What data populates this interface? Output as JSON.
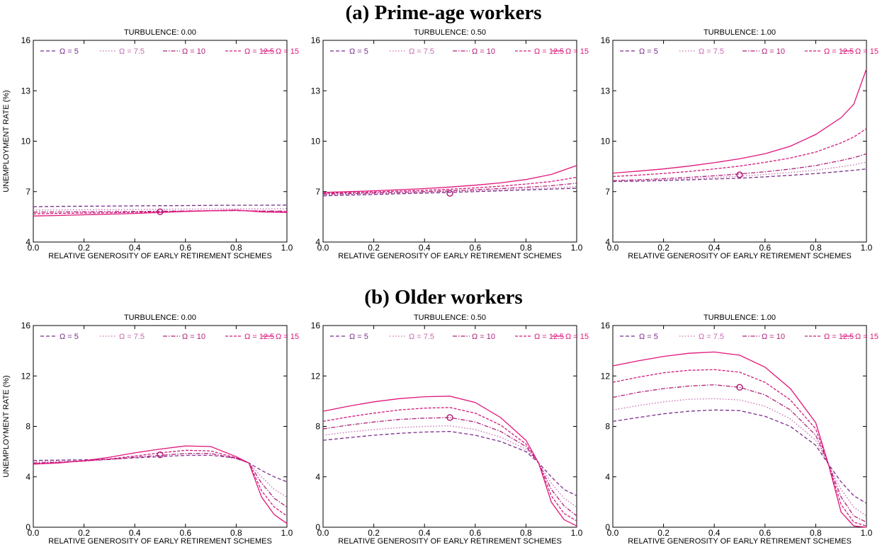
{
  "figure": {
    "section_titles": [
      "(a) Prime-age workers",
      "(b) Older workers"
    ]
  },
  "chart_data": [
    {
      "type": "line",
      "row": 0,
      "col": 0,
      "title": "TURBULENCE: 0.00",
      "xlabel": "RELATIVE GENEROSITY OF EARLY RETIREMENT SCHEMES",
      "ylabel": "UNEMPLOYMENT RATE (%)",
      "xlim": [
        0,
        1
      ],
      "ylim": [
        4,
        16
      ],
      "xticks": [
        "0.0",
        "0.2",
        "0.4",
        "0.6",
        "0.8",
        "1.0"
      ],
      "yticks": [
        "4",
        "7",
        "10",
        "13",
        "16"
      ],
      "legend_position": "top",
      "x": [
        0,
        0.1,
        0.2,
        0.3,
        0.4,
        0.5,
        0.6,
        0.7,
        0.8,
        0.9,
        1.0
      ],
      "series": [
        {
          "name": "Ω = 5",
          "values": [
            6.1,
            6.12,
            6.13,
            6.14,
            6.15,
            6.16,
            6.17,
            6.18,
            6.19,
            6.19,
            6.2
          ]
        },
        {
          "name": "Ω = 7.5",
          "values": [
            5.9,
            5.91,
            5.92,
            5.93,
            5.94,
            5.95,
            5.96,
            5.96,
            5.97,
            5.97,
            5.98
          ]
        },
        {
          "name": "Ω = 10",
          "values": [
            5.78,
            5.79,
            5.8,
            5.81,
            5.82,
            5.83,
            5.85,
            5.86,
            5.87,
            5.85,
            5.84
          ]
        },
        {
          "name": "Ω = 12.5",
          "values": [
            5.68,
            5.7,
            5.72,
            5.74,
            5.77,
            5.8,
            5.83,
            5.86,
            5.88,
            5.83,
            5.8
          ]
        },
        {
          "name": "Ω = 15",
          "values": [
            5.55,
            5.58,
            5.62,
            5.66,
            5.7,
            5.76,
            5.82,
            5.86,
            5.9,
            5.79,
            5.76
          ]
        }
      ],
      "marker": {
        "x": 0.5,
        "y": 5.8
      }
    },
    {
      "type": "line",
      "row": 0,
      "col": 1,
      "title": "TURBULENCE: 0.50",
      "xlabel": "RELATIVE GENEROSITY OF EARLY RETIREMENT SCHEMES",
      "ylabel": "",
      "xlim": [
        0,
        1
      ],
      "ylim": [
        4,
        16
      ],
      "xticks": [
        "0.0",
        "0.2",
        "0.4",
        "0.6",
        "0.8",
        "1.0"
      ],
      "yticks": [
        "4",
        "7",
        "10",
        "13",
        "16"
      ],
      "legend_position": "top",
      "x": [
        0,
        0.1,
        0.2,
        0.3,
        0.4,
        0.5,
        0.6,
        0.7,
        0.8,
        0.9,
        1.0
      ],
      "series": [
        {
          "name": "Ω = 5",
          "values": [
            6.75,
            6.79,
            6.83,
            6.87,
            6.91,
            6.95,
            7.0,
            7.05,
            7.1,
            7.15,
            7.2
          ]
        },
        {
          "name": "Ω = 7.5",
          "values": [
            6.8,
            6.84,
            6.88,
            6.92,
            6.96,
            7.0,
            7.05,
            7.1,
            7.16,
            7.22,
            7.3
          ]
        },
        {
          "name": "Ω = 10",
          "values": [
            6.85,
            6.88,
            6.92,
            6.96,
            7.0,
            7.05,
            7.11,
            7.18,
            7.26,
            7.35,
            7.5
          ]
        },
        {
          "name": "Ω = 12.5",
          "values": [
            6.9,
            6.94,
            6.98,
            7.03,
            7.08,
            7.14,
            7.22,
            7.32,
            7.45,
            7.6,
            7.85
          ]
        },
        {
          "name": "Ω = 15",
          "values": [
            6.95,
            7.0,
            7.05,
            7.11,
            7.18,
            7.27,
            7.38,
            7.52,
            7.72,
            8.02,
            8.55
          ]
        }
      ],
      "marker": {
        "x": 0.5,
        "y": 6.9
      }
    },
    {
      "type": "line",
      "row": 0,
      "col": 2,
      "title": "TURBULENCE: 1.00",
      "xlabel": "RELATIVE GENEROSITY OF EARLY RETIREMENT SCHEMES",
      "ylabel": "",
      "xlim": [
        0,
        1
      ],
      "ylim": [
        4,
        16
      ],
      "xticks": [
        "0.0",
        "0.2",
        "0.4",
        "0.6",
        "0.8",
        "1.0"
      ],
      "yticks": [
        "4",
        "7",
        "10",
        "13",
        "16"
      ],
      "legend_position": "top",
      "x": [
        0,
        0.1,
        0.2,
        0.3,
        0.4,
        0.5,
        0.6,
        0.7,
        0.8,
        0.9,
        0.95,
        1.0
      ],
      "series": [
        {
          "name": "Ω = 5",
          "values": [
            7.6,
            7.62,
            7.66,
            7.7,
            7.75,
            7.8,
            7.88,
            7.97,
            8.07,
            8.2,
            8.27,
            8.35
          ]
        },
        {
          "name": "Ω = 7.5",
          "values": [
            7.62,
            7.66,
            7.71,
            7.77,
            7.84,
            7.92,
            8.02,
            8.14,
            8.28,
            8.48,
            8.6,
            8.75
          ]
        },
        {
          "name": "Ω = 10",
          "values": [
            7.65,
            7.7,
            7.77,
            7.85,
            7.94,
            8.05,
            8.18,
            8.34,
            8.55,
            8.85,
            9.02,
            9.25
          ]
        },
        {
          "name": "Ω = 12.5",
          "values": [
            7.9,
            7.98,
            8.08,
            8.2,
            8.35,
            8.52,
            8.74,
            9.0,
            9.35,
            9.9,
            10.25,
            10.75
          ]
        },
        {
          "name": "Ω = 15",
          "values": [
            8.1,
            8.22,
            8.35,
            8.52,
            8.72,
            8.95,
            9.25,
            9.7,
            10.4,
            11.4,
            12.2,
            14.3
          ]
        }
      ],
      "marker": {
        "x": 0.5,
        "y": 8.0
      }
    },
    {
      "type": "line",
      "row": 1,
      "col": 0,
      "title": "TURBULENCE: 0.00",
      "xlabel": "RELATIVE GENEROSITY OF EARLY RETIREMENT SCHEMES",
      "ylabel": "UNEMPLOYMENT RATE (%)",
      "xlim": [
        0,
        1
      ],
      "ylim": [
        0,
        16
      ],
      "xticks": [
        "0.0",
        "0.2",
        "0.4",
        "0.6",
        "0.8",
        "1.0"
      ],
      "yticks": [
        "0",
        "4",
        "8",
        "12",
        "16"
      ],
      "legend_position": "top",
      "x": [
        0,
        0.1,
        0.2,
        0.3,
        0.4,
        0.5,
        0.6,
        0.7,
        0.8,
        0.85,
        0.9,
        0.95,
        1.0
      ],
      "series": [
        {
          "name": "Ω = 5",
          "values": [
            5.3,
            5.32,
            5.35,
            5.4,
            5.5,
            5.6,
            5.7,
            5.7,
            5.5,
            5.1,
            4.5,
            4.0,
            3.6
          ]
        },
        {
          "name": "Ω = 7.5",
          "values": [
            5.2,
            5.24,
            5.3,
            5.38,
            5.5,
            5.6,
            5.72,
            5.72,
            5.45,
            5.1,
            4.0,
            3.0,
            2.4
          ]
        },
        {
          "name": "Ω = 10",
          "values": [
            5.1,
            5.16,
            5.26,
            5.38,
            5.55,
            5.7,
            5.85,
            5.85,
            5.45,
            5.1,
            3.5,
            2.3,
            1.6
          ]
        },
        {
          "name": "Ω = 12.5",
          "values": [
            5.05,
            5.13,
            5.25,
            5.42,
            5.65,
            5.9,
            6.1,
            6.05,
            5.5,
            5.1,
            2.9,
            1.6,
            0.9
          ]
        },
        {
          "name": "Ω = 15",
          "values": [
            5.0,
            5.1,
            5.28,
            5.55,
            5.9,
            6.2,
            6.45,
            6.4,
            5.6,
            5.1,
            2.4,
            1.0,
            0.3
          ]
        }
      ],
      "marker": {
        "x": 0.5,
        "y": 5.75
      }
    },
    {
      "type": "line",
      "row": 1,
      "col": 1,
      "title": "TURBULENCE: 0.50",
      "xlabel": "RELATIVE GENEROSITY OF EARLY RETIREMENT SCHEMES",
      "ylabel": "",
      "xlim": [
        0,
        1
      ],
      "ylim": [
        0,
        16
      ],
      "xticks": [
        "0.0",
        "0.2",
        "0.4",
        "0.6",
        "0.8",
        "1.0"
      ],
      "yticks": [
        "0",
        "4",
        "8",
        "12",
        "16"
      ],
      "legend_position": "top",
      "x": [
        0,
        0.1,
        0.2,
        0.3,
        0.4,
        0.5,
        0.6,
        0.7,
        0.8,
        0.85,
        0.9,
        0.95,
        1.0
      ],
      "series": [
        {
          "name": "Ω = 5",
          "values": [
            6.9,
            7.1,
            7.3,
            7.45,
            7.55,
            7.6,
            7.3,
            6.8,
            6.0,
            5.1,
            4.0,
            3.0,
            2.5
          ]
        },
        {
          "name": "Ω = 7.5",
          "values": [
            7.3,
            7.55,
            7.75,
            7.9,
            8.0,
            8.05,
            7.75,
            7.15,
            6.2,
            5.1,
            3.5,
            2.3,
            1.6
          ]
        },
        {
          "name": "Ω = 10",
          "values": [
            7.8,
            8.1,
            8.35,
            8.55,
            8.65,
            8.7,
            8.35,
            7.6,
            6.4,
            5.1,
            3.0,
            1.7,
            0.9
          ]
        },
        {
          "name": "Ω = 12.5",
          "values": [
            8.4,
            8.75,
            9.05,
            9.3,
            9.45,
            9.5,
            9.05,
            8.1,
            6.6,
            5.1,
            2.5,
            1.1,
            0.5
          ]
        },
        {
          "name": "Ω = 15",
          "values": [
            9.2,
            9.6,
            9.95,
            10.2,
            10.35,
            10.4,
            9.9,
            8.7,
            6.9,
            5.1,
            2.0,
            0.6,
            0.1
          ]
        }
      ],
      "marker": {
        "x": 0.5,
        "y": 8.7
      }
    },
    {
      "type": "line",
      "row": 1,
      "col": 2,
      "title": "TURBULENCE: 1.00",
      "xlabel": "RELATIVE GENEROSITY OF EARLY RETIREMENT SCHEMES",
      "ylabel": "",
      "xlim": [
        0,
        1
      ],
      "ylim": [
        0,
        16
      ],
      "xticks": [
        "0.0",
        "0.2",
        "0.4",
        "0.6",
        "0.8",
        "1.0"
      ],
      "yticks": [
        "0",
        "4",
        "8",
        "12",
        "16"
      ],
      "legend_position": "top",
      "x": [
        0,
        0.1,
        0.2,
        0.3,
        0.4,
        0.5,
        0.6,
        0.7,
        0.8,
        0.85,
        0.9,
        0.95,
        1.0
      ],
      "series": [
        {
          "name": "Ω = 5",
          "values": [
            8.4,
            8.7,
            9.0,
            9.2,
            9.3,
            9.25,
            8.8,
            8.0,
            6.5,
            5.0,
            3.6,
            2.5,
            1.9
          ]
        },
        {
          "name": "Ω = 7.5",
          "values": [
            9.3,
            9.65,
            9.95,
            10.15,
            10.2,
            10.1,
            9.6,
            8.6,
            6.9,
            5.0,
            3.0,
            1.6,
            0.9
          ]
        },
        {
          "name": "Ω = 10",
          "values": [
            10.3,
            10.7,
            11.0,
            11.2,
            11.3,
            11.1,
            10.5,
            9.3,
            7.3,
            5.0,
            2.4,
            0.9,
            0.4
          ]
        },
        {
          "name": "Ω = 12.5",
          "values": [
            11.5,
            11.9,
            12.25,
            12.45,
            12.5,
            12.3,
            11.5,
            10.1,
            7.8,
            5.0,
            1.8,
            0.4,
            0.1
          ]
        },
        {
          "name": "Ω = 15",
          "values": [
            12.8,
            13.2,
            13.55,
            13.8,
            13.9,
            13.65,
            12.7,
            11.0,
            8.3,
            5.0,
            1.2,
            0.1,
            0.0
          ]
        }
      ],
      "marker": {
        "x": 0.5,
        "y": 11.1
      }
    }
  ],
  "series_style": [
    {
      "color": "#7a2d8a",
      "dash": "5,3"
    },
    {
      "color": "#c76ab0",
      "dash": "1.5,2.5"
    },
    {
      "color": "#b0207a",
      "dash": "6,2,1.5,2"
    },
    {
      "color": "#d11a7c",
      "dash": "4,2"
    },
    {
      "color": "#e0157a",
      "dash": ""
    }
  ],
  "marker_color": "#b0207a"
}
